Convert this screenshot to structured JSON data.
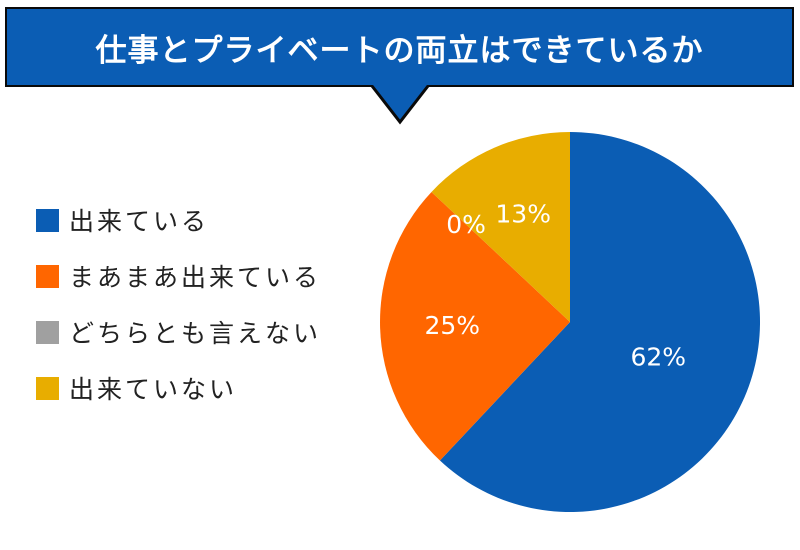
{
  "chart_data": {
    "type": "pie",
    "title": "仕事とプライベートの両立はできているか",
    "legend_position": "left",
    "slices": [
      {
        "label": "出来ている",
        "value": 62,
        "display": "62%",
        "color": "#0b5db4"
      },
      {
        "label": "まあまあ出来ている",
        "value": 25,
        "display": "25%",
        "color": "#ff6600"
      },
      {
        "label": "どちらとも言えない",
        "value": 0,
        "display": "0%",
        "color": "#a0a0a0"
      },
      {
        "label": "出来ていない",
        "value": 13,
        "display": "13%",
        "color": "#e8ad00"
      }
    ]
  }
}
